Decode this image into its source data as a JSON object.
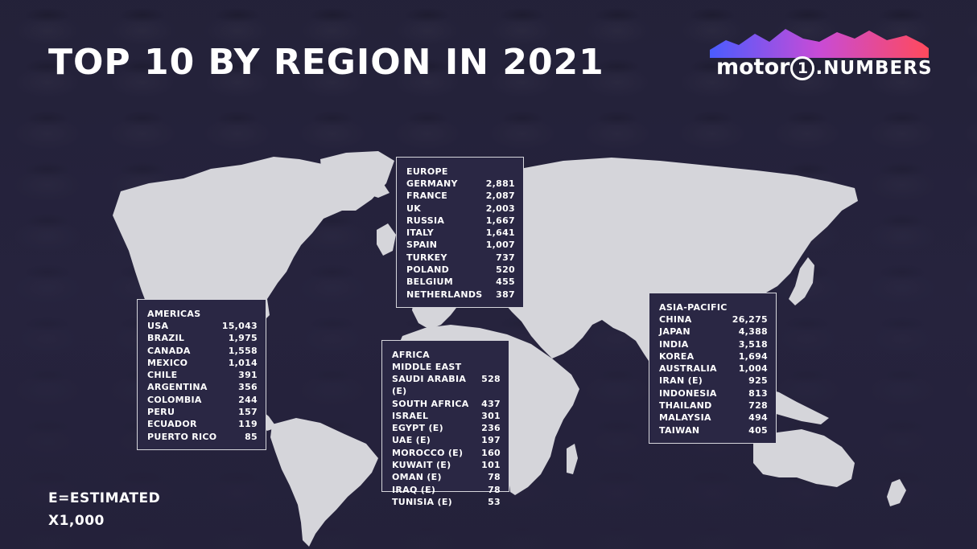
{
  "title": "TOP 10 BY REGION IN 2021",
  "logo": {
    "brand": "motor",
    "one": "1",
    "numbers": ".NUMBERS"
  },
  "regions": {
    "europe": {
      "name": "EUROPE",
      "rows": [
        {
          "country": "GERMANY",
          "value": "2,881"
        },
        {
          "country": "FRANCE",
          "value": "2,087"
        },
        {
          "country": "UK",
          "value": "2,003"
        },
        {
          "country": "RUSSIA",
          "value": "1,667"
        },
        {
          "country": "ITALY",
          "value": "1,641"
        },
        {
          "country": "SPAIN",
          "value": "1,007"
        },
        {
          "country": "TURKEY",
          "value": "737"
        },
        {
          "country": "POLAND",
          "value": "520"
        },
        {
          "country": "BELGIUM",
          "value": "455"
        },
        {
          "country": "NETHERLANDS",
          "value": "387"
        }
      ]
    },
    "americas": {
      "name": "AMERICAS",
      "rows": [
        {
          "country": "USA",
          "value": "15,043"
        },
        {
          "country": "BRAZIL",
          "value": "1,975"
        },
        {
          "country": "CANADA",
          "value": "1,558"
        },
        {
          "country": "MEXICO",
          "value": "1,014"
        },
        {
          "country": "CHILE",
          "value": "391"
        },
        {
          "country": "ARGENTINA",
          "value": "356"
        },
        {
          "country": "COLOMBIA",
          "value": "244"
        },
        {
          "country": "PERU",
          "value": "157"
        },
        {
          "country": "ECUADOR",
          "value": "119"
        },
        {
          "country": "PUERTO RICO",
          "value": "85"
        }
      ]
    },
    "africa": {
      "name": "AFRICA",
      "subname": "MIDDLE EAST",
      "rows": [
        {
          "country": "SAUDI ARABIA (E)",
          "value": "528"
        },
        {
          "country": "SOUTH AFRICA",
          "value": "437"
        },
        {
          "country": "ISRAEL",
          "value": "301"
        },
        {
          "country": "EGYPT (E)",
          "value": "236"
        },
        {
          "country": "UAE (E)",
          "value": "197"
        },
        {
          "country": "MOROCCO (E)",
          "value": "160"
        },
        {
          "country": "KUWAIT (E)",
          "value": "101"
        },
        {
          "country": "OMAN (E)",
          "value": "78"
        },
        {
          "country": "IRAQ (E)",
          "value": "78"
        },
        {
          "country": "TUNISIA (E)",
          "value": "53"
        }
      ]
    },
    "asia": {
      "name": "ASIA-PACIFIC",
      "rows": [
        {
          "country": "CHINA",
          "value": "26,275"
        },
        {
          "country": "JAPAN",
          "value": "4,388"
        },
        {
          "country": "INDIA",
          "value": "3,518"
        },
        {
          "country": "KOREA",
          "value": "1,694"
        },
        {
          "country": "AUSTRALIA",
          "value": "1,004"
        },
        {
          "country": "IRAN (E)",
          "value": "925"
        },
        {
          "country": "INDONESIA",
          "value": "813"
        },
        {
          "country": "THAILAND",
          "value": "728"
        },
        {
          "country": "MALAYSIA",
          "value": "494"
        },
        {
          "country": "TAIWAN",
          "value": "405"
        }
      ]
    }
  },
  "notes": {
    "estimated": "E=ESTIMATED",
    "unit": "X1,000"
  },
  "colors": {
    "background": "#24223a",
    "land": "#d5d5da",
    "box_border": "#d6d6dc",
    "box_fill": "#2a2744"
  }
}
